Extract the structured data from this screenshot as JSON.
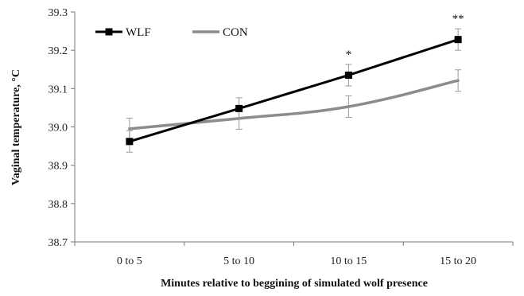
{
  "chart_data": {
    "type": "line",
    "xlabel": "Minutes relative to beggining of simulated wolf presence",
    "ylabel": "Vaginal temperature, °C",
    "categories": [
      "0 to 5",
      "5 to 10",
      "10 to 15",
      "15 to 20"
    ],
    "ylim": [
      38.7,
      39.3
    ],
    "yticks": [
      "38.7",
      "38.8",
      "38.9",
      "39.0",
      "39.1",
      "39.2",
      "39.3"
    ],
    "grid": false,
    "legend_position": "top-left",
    "series": [
      {
        "name": "WLF",
        "color": "#000000",
        "marker": "square",
        "smooth": false,
        "values": [
          38.962,
          39.048,
          39.135,
          39.228
        ],
        "error": [
          0.028,
          0.028,
          0.028,
          0.028
        ]
      },
      {
        "name": "CON",
        "color": "#8c8c8c",
        "marker": "none",
        "smooth": true,
        "values": [
          38.995,
          39.022,
          39.053,
          39.121
        ],
        "error": [
          0.028,
          0.028,
          0.028,
          0.028
        ]
      }
    ],
    "annotations": [
      {
        "category_index": 2,
        "text": "*"
      },
      {
        "category_index": 3,
        "text": "**"
      }
    ]
  }
}
